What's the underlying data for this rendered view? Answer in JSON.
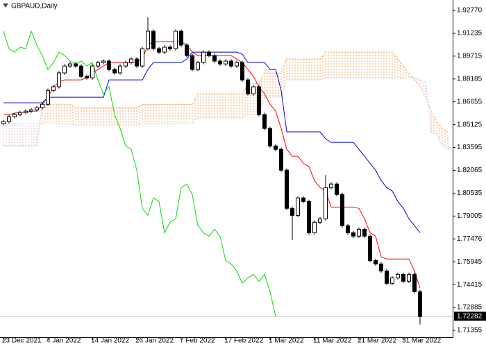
{
  "chart_data": {
    "type": "candlestick",
    "title": "GBPAUD,Daily",
    "categories": [
      "23 Dec 2021",
      null,
      null,
      null,
      null,
      null,
      null,
      null,
      "4 Jan 2022",
      null,
      null,
      null,
      null,
      null,
      null,
      null,
      "14 Jan 2022",
      null,
      null,
      null,
      null,
      null,
      null,
      null,
      "26 Jan 2022",
      null,
      null,
      null,
      null,
      null,
      null,
      null,
      "7 Feb 2022",
      null,
      null,
      null,
      null,
      null,
      null,
      null,
      "17 Feb 2022",
      null,
      null,
      null,
      null,
      null,
      null,
      null,
      "1 Mar 2022",
      null,
      null,
      null,
      null,
      null,
      null,
      null,
      "11 Mar 2022",
      null,
      null,
      null,
      null,
      null,
      null,
      null,
      "21 Mar 2022",
      null,
      null,
      null,
      null,
      null,
      null,
      null,
      "31 Mar 2022",
      null,
      null,
      null,
      null,
      null,
      null,
      null,
      null
    ],
    "open": [
      1.8519,
      1.8533,
      1.8566,
      1.858,
      1.8594,
      1.8603,
      1.8612,
      1.8626,
      1.8649,
      1.8742,
      1.8766,
      1.8859,
      1.8905,
      1.8919,
      1.8905,
      1.8835,
      1.8826,
      1.8905,
      1.8928,
      1.8938,
      1.8882,
      1.8859,
      1.8905,
      1.8928,
      1.8952,
      1.8905,
      1.9021,
      1.9138,
      1.9021,
      1.8998,
      1.9031,
      1.9021,
      1.9138,
      1.9045,
      1.8975,
      1.8882,
      1.8928,
      1.8998,
      1.8975,
      1.8938,
      1.8919,
      1.8938,
      1.8905,
      1.8928,
      1.8812,
      1.8719,
      1.8766,
      1.858,
      1.8487,
      1.837,
      1.8347,
      1.8208,
      1.7952,
      1.7905,
      1.8022,
      1.7998,
      1.7789,
      1.7859,
      1.7882,
      1.8091,
      1.8115,
      1.8045,
      1.7836,
      1.7789,
      1.7766,
      1.7812,
      1.7766,
      1.7603,
      1.758,
      1.7533,
      1.745,
      1.7487,
      1.751,
      1.7464,
      1.751,
      1.7394,
      null,
      null,
      null,
      null,
      null
    ],
    "high": [
      1.8545,
      1.8578,
      1.8592,
      1.8606,
      1.8615,
      1.8624,
      1.8638,
      1.8661,
      1.8754,
      1.8778,
      1.8871,
      1.8917,
      1.8931,
      1.8931,
      1.8917,
      1.8847,
      1.8917,
      1.894,
      1.895,
      1.895,
      1.8894,
      1.8917,
      1.894,
      1.8964,
      1.8964,
      1.9033,
      1.9231,
      1.915,
      1.9033,
      1.9043,
      1.9043,
      1.915,
      1.915,
      1.9057,
      1.8987,
      1.894,
      1.901,
      1.901,
      1.8987,
      1.895,
      1.895,
      1.895,
      1.894,
      1.894,
      1.8824,
      1.8778,
      1.8778,
      1.8592,
      1.8499,
      1.8382,
      1.8359,
      1.822,
      1.7964,
      1.8034,
      1.8034,
      1.801,
      1.7871,
      1.7894,
      1.8175,
      1.8127,
      1.8127,
      1.8057,
      1.7848,
      1.7801,
      1.7824,
      1.7824,
      1.7778,
      1.7615,
      1.7592,
      1.7545,
      1.7499,
      1.7522,
      1.7522,
      1.7522,
      1.7522,
      1.7406,
      null,
      null,
      null,
      null,
      null
    ],
    "low": [
      1.8507,
      1.8521,
      1.8554,
      1.8568,
      1.8582,
      1.8591,
      1.86,
      1.8614,
      1.8637,
      1.873,
      1.8754,
      1.8847,
      1.8893,
      1.8893,
      1.8823,
      1.8814,
      1.8814,
      1.8893,
      1.8916,
      1.887,
      1.8847,
      1.8847,
      1.8893,
      1.8916,
      1.8893,
      1.8893,
      1.9009,
      1.9009,
      1.8986,
      1.8986,
      1.9009,
      1.9009,
      1.9033,
      1.8963,
      1.887,
      1.887,
      1.8916,
      1.8963,
      1.8926,
      1.8907,
      1.8907,
      1.8893,
      1.8893,
      1.88,
      1.8707,
      1.8707,
      1.8568,
      1.8475,
      1.8358,
      1.8335,
      1.8196,
      1.794,
      1.774,
      1.7893,
      1.7986,
      1.7777,
      1.7777,
      1.7847,
      1.787,
      1.8079,
      1.8033,
      1.7824,
      1.7777,
      1.7754,
      1.7754,
      1.7754,
      1.7591,
      1.7568,
      1.7521,
      1.7438,
      1.7438,
      1.7475,
      1.7452,
      1.7452,
      1.7382,
      1.7175,
      null,
      null,
      null,
      null,
      null
    ],
    "close": [
      1.8533,
      1.8566,
      1.858,
      1.8594,
      1.8603,
      1.8612,
      1.8626,
      1.8649,
      1.8742,
      1.8766,
      1.8859,
      1.8905,
      1.8919,
      1.8905,
      1.8835,
      1.8826,
      1.8905,
      1.8928,
      1.8938,
      1.8882,
      1.8859,
      1.8905,
      1.8928,
      1.8952,
      1.8905,
      1.9021,
      1.9138,
      1.9021,
      1.8998,
      1.9031,
      1.9021,
      1.9138,
      1.9045,
      1.8975,
      1.8882,
      1.8928,
      1.8998,
      1.8975,
      1.8938,
      1.8919,
      1.8938,
      1.8905,
      1.8928,
      1.8812,
      1.8719,
      1.8766,
      1.858,
      1.8487,
      1.837,
      1.8347,
      1.8208,
      1.7952,
      1.7905,
      1.8022,
      1.7998,
      1.7789,
      1.7859,
      1.7882,
      1.8091,
      1.8115,
      1.8045,
      1.7836,
      1.7789,
      1.7766,
      1.7812,
      1.7766,
      1.7603,
      1.758,
      1.7533,
      1.745,
      1.7487,
      1.751,
      1.7464,
      1.751,
      1.7394,
      1.72282,
      null,
      null,
      null,
      null,
      null
    ],
    "bull_color": "#ffffff",
    "bear_color": "#000000",
    "lines": [
      {
        "color": "#ff0000",
        "values": [
          1.858,
          1.858,
          1.8589,
          1.8594,
          1.8594,
          1.8603,
          1.8603,
          1.8649,
          1.8696,
          1.8766,
          1.8798,
          1.8812,
          1.8812,
          1.8812,
          1.8812,
          1.8826,
          1.8859,
          1.8882,
          1.8905,
          1.8928,
          1.8928,
          1.8928,
          1.8928,
          1.8928,
          1.8928,
          1.8952,
          1.9045,
          1.9068,
          1.9068,
          1.9068,
          1.9068,
          1.9068,
          1.9068,
          1.9045,
          1.8998,
          1.8975,
          1.8975,
          1.8975,
          1.8975,
          1.8975,
          1.8975,
          1.8975,
          1.8952,
          1.8928,
          1.8882,
          1.8835,
          1.8766,
          1.8719,
          1.8649,
          1.8603,
          1.8487,
          1.8347,
          1.8301,
          1.8301,
          1.8254,
          1.8231,
          1.8138,
          1.8091,
          1.8068,
          1.7961,
          1.7961,
          1.7961,
          1.7961,
          1.7961,
          1.7952,
          1.7882,
          1.7789,
          1.7766,
          1.7627,
          1.7613,
          1.7613,
          1.7613,
          1.7613,
          1.7613,
          1.7533,
          1.7417,
          null,
          null,
          null,
          null,
          null
        ]
      },
      {
        "color": "#0000cc",
        "values": [
          1.8659,
          1.8659,
          1.8659,
          1.8659,
          1.8659,
          1.8659,
          1.8659,
          1.8659,
          1.8696,
          1.8696,
          1.8696,
          1.8696,
          1.8696,
          1.8696,
          1.8696,
          1.8696,
          1.8696,
          1.8696,
          1.8696,
          1.8812,
          1.8812,
          1.8812,
          1.8812,
          1.8812,
          1.8812,
          1.8812,
          1.8882,
          1.8928,
          1.8928,
          1.8928,
          1.8928,
          1.8928,
          1.8928,
          1.8952,
          1.8998,
          1.8998,
          1.8998,
          1.8998,
          1.8998,
          1.8998,
          1.8998,
          1.8998,
          1.8998,
          1.8984,
          1.8928,
          1.8928,
          1.8928,
          1.8928,
          1.8882,
          1.8882,
          1.8742,
          1.8464,
          1.8464,
          1.8464,
          1.8464,
          1.8464,
          1.8464,
          1.8464,
          1.8417,
          1.8394,
          1.8394,
          1.8394,
          1.8394,
          1.8394,
          1.8347,
          1.8301,
          1.8254,
          1.8208,
          1.8138,
          1.8091,
          1.8068,
          1.7998,
          1.7952,
          1.7882,
          1.7836,
          1.7789,
          null,
          null,
          null,
          null,
          null
        ]
      },
      {
        "color": "#00dd00",
        "values": [
          1.9138,
          1.9021,
          1.8998,
          1.9031,
          1.9021,
          1.9138,
          1.9045,
          1.8975,
          1.8882,
          1.8928,
          1.8998,
          1.8975,
          1.8938,
          1.8919,
          1.8938,
          1.8905,
          1.8928,
          1.8812,
          1.8719,
          1.8766,
          1.858,
          1.8487,
          1.837,
          1.8347,
          1.8208,
          1.7952,
          1.7905,
          1.8022,
          1.7998,
          1.7789,
          1.7859,
          1.7882,
          1.8091,
          1.8115,
          1.8045,
          1.7836,
          1.7789,
          1.7766,
          1.7812,
          1.7766,
          1.7603,
          1.758,
          1.7533,
          1.745,
          1.7487,
          1.751,
          1.7464,
          1.751,
          1.7394,
          1.72282,
          null,
          null,
          null,
          null,
          null,
          null,
          null,
          null,
          null,
          null,
          null,
          null,
          null,
          null,
          null,
          null,
          null,
          null,
          null,
          null,
          null,
          null,
          null,
          null,
          null,
          null,
          null,
          null,
          null,
          null,
          null
        ]
      }
    ],
    "cloud": {
      "color_a": "#f4a460",
      "color_b": "#d8bfd8",
      "span_a": [
        1.837,
        1.837,
        1.837,
        1.837,
        1.837,
        1.837,
        1.837,
        1.8649,
        1.8649,
        1.8649,
        1.8649,
        1.8649,
        1.8649,
        1.8626,
        1.8626,
        1.8626,
        1.8626,
        1.8626,
        1.8626,
        1.8626,
        1.8626,
        1.8626,
        1.8626,
        1.8626,
        1.8626,
        1.8649,
        1.8649,
        1.8649,
        1.8649,
        1.8649,
        1.8649,
        1.8649,
        1.8649,
        1.8649,
        1.8649,
        1.8719,
        1.8719,
        1.8719,
        1.8719,
        1.8719,
        1.8719,
        1.8719,
        1.8719,
        1.8719,
        1.8789,
        1.8789,
        1.8789,
        1.8859,
        1.8859,
        1.8859,
        1.8859,
        1.8952,
        1.8952,
        1.8952,
        1.8952,
        1.8952,
        1.8952,
        1.8952,
        1.8998,
        1.8998,
        1.8998,
        1.8998,
        1.8998,
        1.8998,
        1.8998,
        1.8998,
        1.8998,
        1.8998,
        1.8998,
        1.8998,
        1.8998,
        1.8952,
        1.8905,
        1.8859,
        1.8812,
        1.8766,
        1.8696,
        1.8603,
        1.8533,
        1.8487,
        1.8464
      ],
      "span_b": [
        1.8519,
        1.8519,
        1.8519,
        1.8519,
        1.8519,
        1.8519,
        1.8519,
        1.8519,
        1.8519,
        1.8519,
        1.8519,
        1.8519,
        1.8519,
        1.851,
        1.851,
        1.851,
        1.851,
        1.851,
        1.851,
        1.851,
        1.851,
        1.851,
        1.851,
        1.851,
        1.851,
        1.8519,
        1.8519,
        1.8519,
        1.8519,
        1.8519,
        1.8519,
        1.8519,
        1.8519,
        1.8519,
        1.8519,
        1.8557,
        1.8557,
        1.8557,
        1.8557,
        1.8557,
        1.8557,
        1.8557,
        1.8557,
        1.8557,
        1.858,
        1.858,
        1.858,
        1.8696,
        1.8696,
        1.8696,
        1.8696,
        1.8812,
        1.8812,
        1.8812,
        1.8812,
        1.8812,
        1.8812,
        1.8812,
        1.8826,
        1.8826,
        1.8826,
        1.8826,
        1.8826,
        1.8826,
        1.8826,
        1.8826,
        1.8826,
        1.8826,
        1.8826,
        1.8826,
        1.8826,
        1.8826,
        1.8826,
        1.8826,
        1.8826,
        1.8812,
        1.8798,
        1.8464,
        1.844,
        1.837,
        1.8347
      ]
    },
    "ylim": [
      1.7089,
      1.9347
    ],
    "yticks": [
      {
        "value": 1.9277,
        "label": "1.92770"
      },
      1.91235,
      1.89715,
      1.88185,
      1.86655,
      1.85125,
      1.83595,
      1.82065,
      1.80535,
      1.79005,
      1.77476,
      1.75945,
      1.74415,
      1.72885,
      1.71355
    ],
    "last_price": {
      "value": 1.72282,
      "label": "1.72282"
    }
  }
}
